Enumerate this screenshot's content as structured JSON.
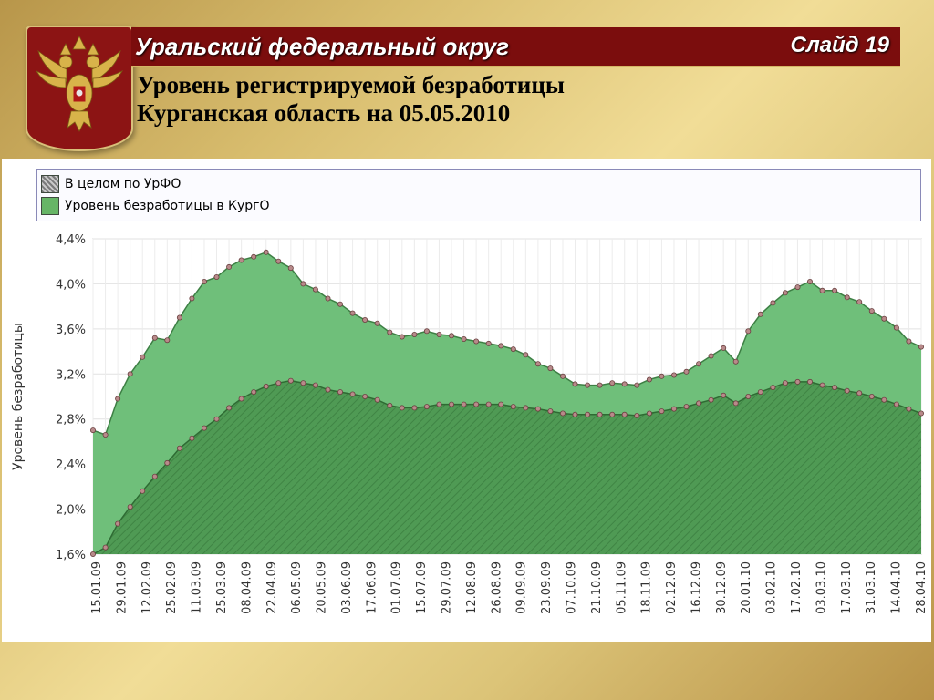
{
  "header": {
    "region": "Уральский федеральный округ",
    "slide": "Слайд 19"
  },
  "title": {
    "line1": "Уровень регистрируемой безработицы",
    "line2": "Курганская область на 05.05.2010"
  },
  "colors": {
    "kurgan_fill": "#6fbf7a",
    "urfo_fill": "#4f9a54",
    "header_bg": "#7b0d0d",
    "grid": "#e2e2e2"
  },
  "chart_data": {
    "type": "area",
    "ylabel": "Уровень безработицы",
    "xlabel": "",
    "ylim": [
      1.6,
      4.4
    ],
    "yticks": [
      "1,6%",
      "2,0%",
      "2,4%",
      "2,8%",
      "3,2%",
      "3,6%",
      "4,0%",
      "4,4%"
    ],
    "grid": true,
    "legend_position": "top",
    "x_tick_labels": [
      "15.01.09",
      "29.01.09",
      "12.02.09",
      "25.02.09",
      "11.03.09",
      "25.03.09",
      "08.04.09",
      "22.04.09",
      "06.05.09",
      "20.05.09",
      "03.06.09",
      "17.06.09",
      "01.07.09",
      "15.07.09",
      "29.07.09",
      "12.08.09",
      "26.08.09",
      "09.09.09",
      "23.09.09",
      "07.10.09",
      "21.10.09",
      "05.11.09",
      "18.11.09",
      "02.12.09",
      "16.12.09",
      "30.12.09",
      "20.01.10",
      "03.02.10",
      "17.02.10",
      "03.03.10",
      "17.03.10",
      "31.03.10",
      "14.04.10",
      "28.04.10"
    ],
    "series": [
      {
        "name": "Уровень безработицы в КургО",
        "values": [
          2.7,
          2.66,
          2.98,
          3.2,
          3.35,
          3.52,
          3.5,
          3.7,
          3.87,
          4.02,
          4.06,
          4.15,
          4.21,
          4.24,
          4.28,
          4.2,
          4.14,
          4.0,
          3.95,
          3.87,
          3.82,
          3.74,
          3.68,
          3.65,
          3.57,
          3.53,
          3.55,
          3.58,
          3.55,
          3.54,
          3.51,
          3.49,
          3.47,
          3.45,
          3.42,
          3.37,
          3.29,
          3.25,
          3.18,
          3.11,
          3.1,
          3.1,
          3.12,
          3.11,
          3.1,
          3.15,
          3.18,
          3.19,
          3.22,
          3.29,
          3.36,
          3.43,
          3.31,
          3.58,
          3.73,
          3.83,
          3.92,
          3.97,
          4.02,
          3.94,
          3.94,
          3.88,
          3.84,
          3.76,
          3.69,
          3.61,
          3.49,
          3.44
        ]
      },
      {
        "name": "В целом по УрФО",
        "values": [
          1.6,
          1.66,
          1.87,
          2.02,
          2.16,
          2.29,
          2.41,
          2.54,
          2.63,
          2.72,
          2.8,
          2.9,
          2.98,
          3.04,
          3.09,
          3.12,
          3.14,
          3.12,
          3.1,
          3.06,
          3.04,
          3.02,
          3.0,
          2.97,
          2.92,
          2.9,
          2.9,
          2.91,
          2.93,
          2.93,
          2.93,
          2.93,
          2.93,
          2.93,
          2.91,
          2.9,
          2.89,
          2.87,
          2.85,
          2.84,
          2.84,
          2.84,
          2.84,
          2.84,
          2.83,
          2.85,
          2.87,
          2.89,
          2.91,
          2.94,
          2.97,
          3.01,
          2.94,
          3.0,
          3.04,
          3.08,
          3.12,
          3.13,
          3.13,
          3.1,
          3.08,
          3.05,
          3.03,
          3.0,
          2.97,
          2.93,
          2.89,
          2.85
        ]
      }
    ]
  }
}
